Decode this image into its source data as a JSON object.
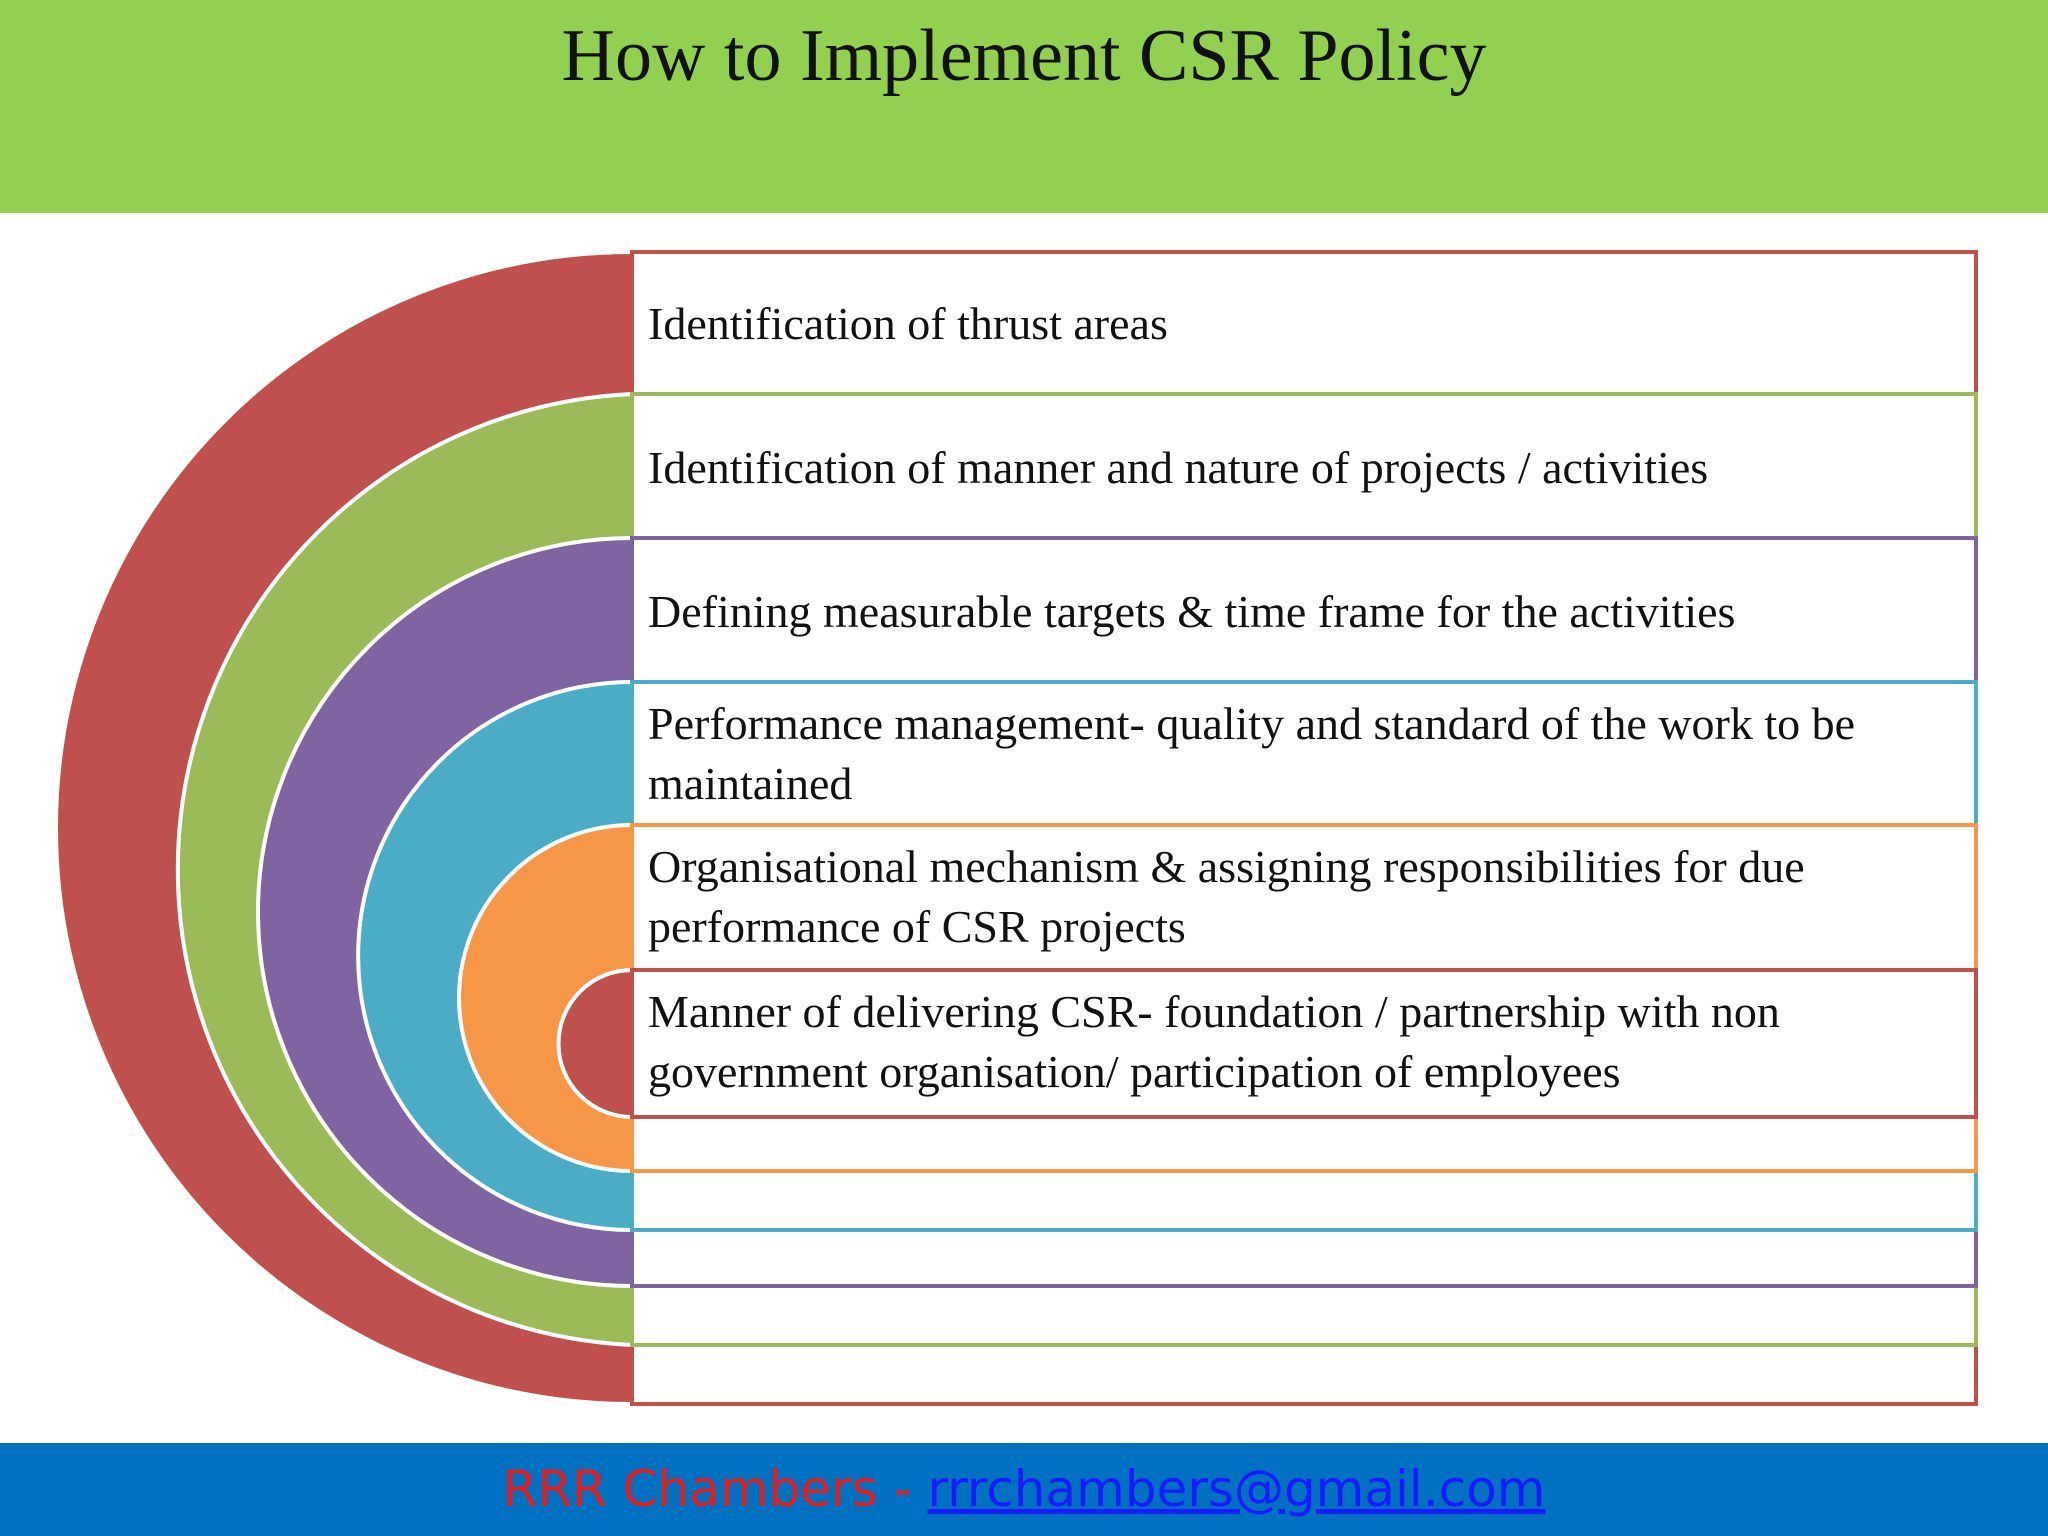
{
  "title": "How to Implement CSR Policy",
  "steps": [
    "Identification of thrust areas",
    "Identification of manner and nature of projects / activities",
    "Defining measurable targets & time frame for the activities",
    "Performance management- quality and standard of the work to be maintained",
    "Organisational mechanism & assigning responsibilities for due performance of  CSR projects",
    "Manner of delivering CSR- foundation / partnership with non government organisation/ participation of employees"
  ],
  "footer": {
    "name": "RRR Chambers -",
    "email": "rrrchambers@gmail.com"
  }
}
